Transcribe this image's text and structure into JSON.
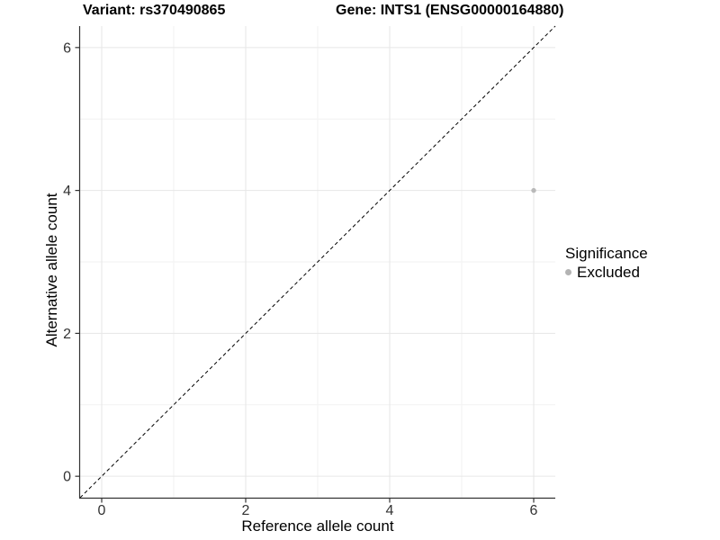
{
  "title": {
    "variant": "Variant: rs370490865",
    "gene": "Gene: INTS1 (ENSG00000164880)"
  },
  "axes": {
    "x_label": "Reference allele count",
    "y_label": "Alternative allele count"
  },
  "legend": {
    "title": "Significance",
    "items": [
      {
        "label": "Excluded",
        "color": "#b3b3b3"
      }
    ]
  },
  "chart_data": {
    "type": "scatter",
    "title": "Variant: rs370490865  /  Gene: INTS1 (ENSG00000164880)",
    "xlabel": "Reference allele count",
    "ylabel": "Alternative allele count",
    "xlim": [
      -0.3,
      6.3
    ],
    "ylim": [
      -0.3,
      6.3
    ],
    "x_ticks": [
      0,
      2,
      4,
      6
    ],
    "y_ticks": [
      0,
      2,
      4,
      6
    ],
    "minor_ticks": [
      1,
      3,
      5
    ],
    "grid": "major+minor",
    "legend_position": "right",
    "series": [
      {
        "name": "Excluded",
        "color": "#b9b9b9",
        "points": [
          {
            "x": 6,
            "y": 4
          }
        ]
      }
    ],
    "reference_line": {
      "type": "identity",
      "style": "dashed",
      "color": "#000000",
      "from": [
        -0.3,
        -0.3
      ],
      "to": [
        6.3,
        6.3
      ]
    },
    "colors": {
      "major_grid": "#e6e6e6",
      "minor_grid": "#f2f2f2",
      "axis_line": "#333333",
      "tick_label": "#333333"
    }
  }
}
